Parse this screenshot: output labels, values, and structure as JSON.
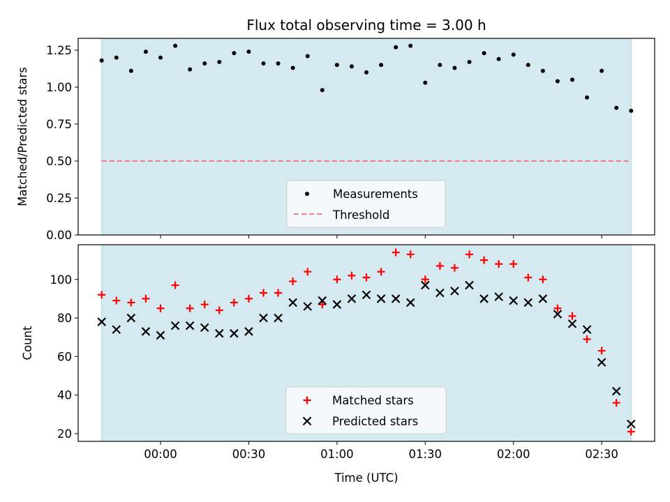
{
  "colors": {
    "shade": "#d5eaf0",
    "shade_edge": "#a9d6e3",
    "measurement": "#000000",
    "threshold": "#f08080",
    "matched": "#ff0000",
    "predicted": "#000000",
    "legend_face": "#f5f9fc"
  },
  "chart_data": [
    {
      "type": "scatter",
      "title": "Flux total observing time = 3.00 h",
      "xlabel": "",
      "ylabel": "Matched/Predicted stars",
      "xlim_minutes": [
        -28,
        168
      ],
      "ylim": [
        0,
        1.33
      ],
      "yticks": [
        {
          "value": 0.0,
          "label": "0.00"
        },
        {
          "value": 0.25,
          "label": "0.25"
        },
        {
          "value": 0.5,
          "label": "0.50"
        },
        {
          "value": 0.75,
          "label": "0.75"
        },
        {
          "value": 1.0,
          "label": "1.00"
        },
        {
          "value": 1.25,
          "label": "1.25"
        }
      ],
      "shaded_span_minutes": [
        -20,
        160
      ],
      "threshold": 0.5,
      "legend": {
        "placement": "lower center",
        "entries": [
          "Measurements",
          "Threshold"
        ]
      },
      "series": [
        {
          "name": "Measurements",
          "x": [
            "-0:20",
            "-0:15",
            "-0:10",
            "-0:05",
            "00:00",
            "00:05",
            "00:10",
            "00:15",
            "00:20",
            "00:25",
            "00:30",
            "00:35",
            "00:40",
            "00:45",
            "00:50",
            "00:55",
            "01:00",
            "01:05",
            "01:10",
            "01:15",
            "01:20",
            "01:25",
            "01:30",
            "01:35",
            "01:40",
            "01:45",
            "01:50",
            "01:55",
            "02:00",
            "02:05",
            "02:10",
            "02:15",
            "02:20",
            "02:25",
            "02:30",
            "02:35",
            "02:40"
          ],
          "values": [
            1.18,
            1.2,
            1.11,
            1.24,
            1.2,
            1.28,
            1.12,
            1.16,
            1.17,
            1.23,
            1.24,
            1.16,
            1.16,
            1.13,
            1.21,
            0.98,
            1.15,
            1.14,
            1.1,
            1.15,
            1.27,
            1.28,
            1.03,
            1.15,
            1.13,
            1.17,
            1.23,
            1.19,
            1.22,
            1.15,
            1.11,
            1.04,
            1.05,
            0.93,
            1.11,
            0.86,
            0.84
          ]
        }
      ]
    },
    {
      "type": "scatter",
      "xlabel": "Time (UTC)",
      "ylabel": "Count",
      "xlim_minutes": [
        -28,
        168
      ],
      "ylim": [
        16,
        118
      ],
      "yticks": [
        {
          "value": 20,
          "label": "20"
        },
        {
          "value": 40,
          "label": "40"
        },
        {
          "value": 60,
          "label": "60"
        },
        {
          "value": 80,
          "label": "80"
        },
        {
          "value": 100,
          "label": "100"
        }
      ],
      "xticks": [
        {
          "minutes": 0,
          "label": "00:00"
        },
        {
          "minutes": 30,
          "label": "00:30"
        },
        {
          "minutes": 60,
          "label": "01:00"
        },
        {
          "minutes": 90,
          "label": "01:30"
        },
        {
          "minutes": 120,
          "label": "02:00"
        },
        {
          "minutes": 150,
          "label": "02:30"
        }
      ],
      "shaded_span_minutes": [
        -20,
        160
      ],
      "legend": {
        "placement": "lower center",
        "entries": [
          "Matched stars",
          "Predicted stars"
        ]
      },
      "series": [
        {
          "name": "Matched stars",
          "x": [
            "-0:20",
            "-0:15",
            "-0:10",
            "-0:05",
            "00:00",
            "00:05",
            "00:10",
            "00:15",
            "00:20",
            "00:25",
            "00:30",
            "00:35",
            "00:40",
            "00:45",
            "00:50",
            "00:55",
            "01:00",
            "01:05",
            "01:10",
            "01:15",
            "01:20",
            "01:25",
            "01:30",
            "01:35",
            "01:40",
            "01:45",
            "01:50",
            "01:55",
            "02:00",
            "02:05",
            "02:10",
            "02:15",
            "02:20",
            "02:25",
            "02:30",
            "02:35",
            "02:40"
          ],
          "values": [
            92,
            89,
            88,
            90,
            85,
            97,
            85,
            87,
            84,
            88,
            90,
            93,
            93,
            99,
            104,
            87,
            100,
            102,
            101,
            104,
            114,
            113,
            100,
            107,
            106,
            113,
            110,
            108,
            108,
            101,
            100,
            85,
            81,
            69,
            63,
            36,
            21
          ]
        },
        {
          "name": "Predicted stars",
          "x": [
            "-0:20",
            "-0:15",
            "-0:10",
            "-0:05",
            "00:00",
            "00:05",
            "00:10",
            "00:15",
            "00:20",
            "00:25",
            "00:30",
            "00:35",
            "00:40",
            "00:45",
            "00:50",
            "00:55",
            "01:00",
            "01:05",
            "01:10",
            "01:15",
            "01:20",
            "01:25",
            "01:30",
            "01:35",
            "01:40",
            "01:45",
            "01:50",
            "01:55",
            "02:00",
            "02:05",
            "02:10",
            "02:15",
            "02:20",
            "02:25",
            "02:30",
            "02:35",
            "02:40"
          ],
          "values": [
            78,
            74,
            80,
            73,
            71,
            76,
            76,
            75,
            72,
            72,
            73,
            80,
            80,
            88,
            86,
            89,
            87,
            90,
            92,
            90,
            90,
            88,
            97,
            93,
            94,
            97,
            90,
            91,
            89,
            88,
            90,
            82,
            77,
            74,
            57,
            42,
            25
          ]
        }
      ]
    }
  ]
}
